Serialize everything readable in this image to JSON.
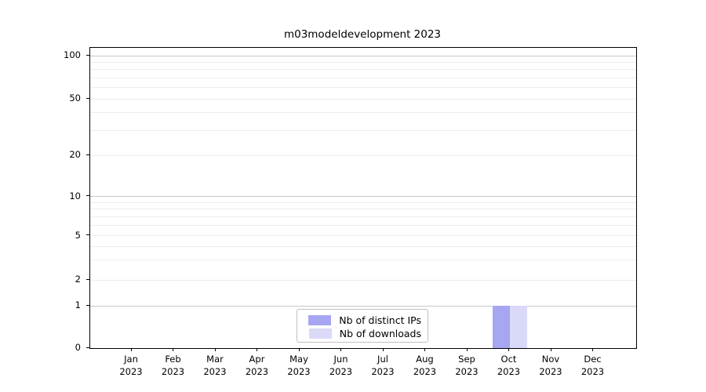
{
  "chart_data": {
    "type": "bar",
    "title": "m03modeldevelopment 2023",
    "categories": [
      "Jan 2023",
      "Feb 2023",
      "Mar 2023",
      "Apr 2023",
      "May 2023",
      "Jun 2023",
      "Jul 2023",
      "Aug 2023",
      "Sep 2023",
      "Oct 2023",
      "Nov 2023",
      "Dec 2023"
    ],
    "series": [
      {
        "name": "Nb of distinct IPs",
        "color": "#a6a6f2",
        "values": [
          0,
          0,
          0,
          0,
          0,
          0,
          0,
          0,
          0,
          1,
          0,
          0
        ]
      },
      {
        "name": "Nb of downloads",
        "color": "#dadaf8",
        "values": [
          0,
          0,
          0,
          0,
          0,
          0,
          0,
          0,
          0,
          1,
          0,
          0
        ]
      }
    ],
    "yscale": "symlog",
    "y_ticks": [
      0,
      1,
      2,
      5,
      10,
      20,
      50,
      100
    ],
    "y_minor_gridlines": [
      2,
      3,
      4,
      5,
      6,
      7,
      8,
      9,
      20,
      30,
      40,
      50,
      60,
      70,
      80,
      90
    ],
    "y_major_gridlines": [
      1,
      10,
      100
    ],
    "ylim": [
      0,
      113
    ],
    "grid": "horizontal major and minor, light gray",
    "legend_position": "lower center-left inside plot",
    "legend_entries": [
      "Nb of distinct IPs",
      "Nb of downloads"
    ]
  }
}
